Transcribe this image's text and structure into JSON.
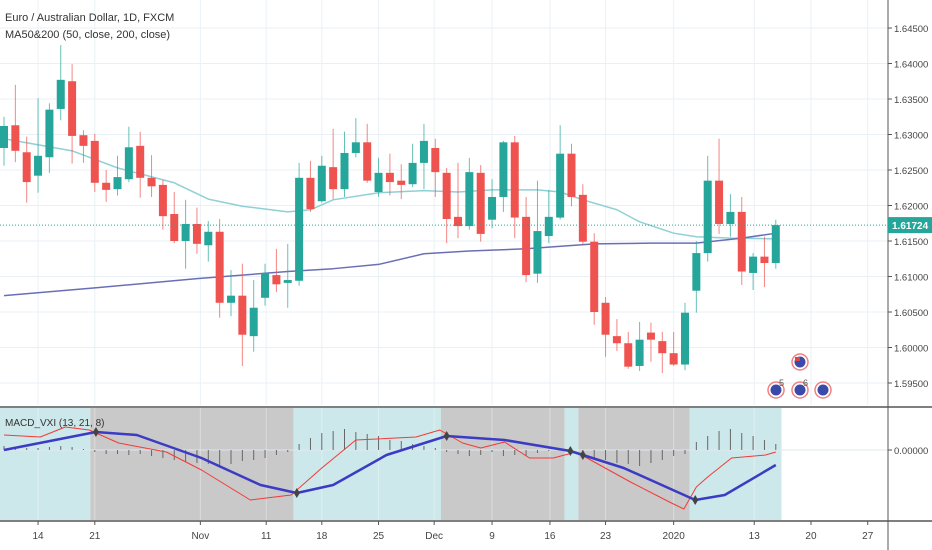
{
  "header": {
    "title": "Euro / Australian Dollar, 1D, FXCM",
    "study": "MA50&200 (50, close, 200, close)"
  },
  "macd": {
    "label": "MACD_VXI (13, 21, 8)"
  },
  "colors": {
    "up": "#26a69a",
    "down": "#ef5350",
    "ma50": "#8fd0d6",
    "ma200": "#6a6fb5",
    "macd_line": "#3b3bc4",
    "signal_line": "#f23a3a",
    "bull_bg": "#cde8ea",
    "bear_bg": "#c9c9c9",
    "grid": "#eaf1f6",
    "last_price": "#26a69a"
  },
  "events": [
    {
      "label": "",
      "icon": "au-flag-icon"
    },
    {
      "label": "5",
      "icon": "eu-flag-icon"
    },
    {
      "label": "6",
      "icon": "eu-flag-icon"
    },
    {
      "label": "",
      "icon": "eu-flag-icon"
    }
  ],
  "chart_data": {
    "type": "candlestick",
    "title": "Euro / Australian Dollar, 1D, FXCM",
    "ylim": [
      1.5925,
      1.6485
    ],
    "y_ticks": [
      "1.64500",
      "1.64000",
      "1.63500",
      "1.63000",
      "1.62500",
      "1.62000",
      "1.61500",
      "1.61000",
      "1.60500",
      "1.60000",
      "1.59500"
    ],
    "last_price": "1.61724",
    "x_ticks": [
      {
        "label": "14",
        "idx": 4
      },
      {
        "label": "21",
        "idx": 9
      },
      {
        "label": "Nov",
        "idx": 18.3
      },
      {
        "label": "11",
        "idx": 24.1
      },
      {
        "label": "18",
        "idx": 29
      },
      {
        "label": "25",
        "idx": 34
      },
      {
        "label": "Dec",
        "idx": 38.9
      },
      {
        "label": "9",
        "idx": 44
      },
      {
        "label": "16",
        "idx": 49.1
      },
      {
        "label": "23",
        "idx": 54
      },
      {
        "label": "2020",
        "idx": 60
      },
      {
        "label": "13",
        "idx": 67.1
      },
      {
        "label": "20",
        "idx": 72.1
      },
      {
        "label": "27",
        "idx": 77.1
      }
    ],
    "candles_ohlc": [
      [
        1.6281,
        1.6325,
        1.6256,
        1.6312
      ],
      [
        1.6313,
        1.637,
        1.6261,
        1.6277
      ],
      [
        1.6275,
        1.6297,
        1.6204,
        1.6233
      ],
      [
        1.6242,
        1.6351,
        1.6218,
        1.627
      ],
      [
        1.6268,
        1.6344,
        1.6246,
        1.6335
      ],
      [
        1.6336,
        1.6426,
        1.632,
        1.6377
      ],
      [
        1.6375,
        1.6399,
        1.6259,
        1.6298
      ],
      [
        1.6299,
        1.6306,
        1.626,
        1.6284
      ],
      [
        1.6291,
        1.6301,
        1.6219,
        1.6232
      ],
      [
        1.6232,
        1.625,
        1.6205,
        1.6222
      ],
      [
        1.6223,
        1.627,
        1.6214,
        1.624
      ],
      [
        1.6237,
        1.6311,
        1.6233,
        1.6282
      ],
      [
        1.6284,
        1.6304,
        1.6211,
        1.6239
      ],
      [
        1.6239,
        1.6271,
        1.6212,
        1.6227
      ],
      [
        1.6229,
        1.6236,
        1.6166,
        1.6185
      ],
      [
        1.6188,
        1.6219,
        1.6147,
        1.615
      ],
      [
        1.615,
        1.6208,
        1.6111,
        1.6174
      ],
      [
        1.6174,
        1.6197,
        1.6132,
        1.6146
      ],
      [
        1.6144,
        1.6178,
        1.6121,
        1.6163
      ],
      [
        1.6163,
        1.6181,
        1.6042,
        1.6063
      ],
      [
        1.6063,
        1.6109,
        1.6044,
        1.6073
      ],
      [
        1.6073,
        1.6118,
        1.5974,
        1.6018
      ],
      [
        1.6016,
        1.6095,
        1.5994,
        1.6056
      ],
      [
        1.607,
        1.6118,
        1.6059,
        1.6105
      ],
      [
        1.6102,
        1.6139,
        1.6078,
        1.6089
      ],
      [
        1.6091,
        1.6146,
        1.6056,
        1.6095
      ],
      [
        1.6094,
        1.626,
        1.6087,
        1.6239
      ],
      [
        1.6239,
        1.6263,
        1.6191,
        1.6195
      ],
      [
        1.6206,
        1.627,
        1.6204,
        1.6256
      ],
      [
        1.6254,
        1.6308,
        1.6209,
        1.6223
      ],
      [
        1.6223,
        1.6304,
        1.6212,
        1.6274
      ],
      [
        1.6274,
        1.6323,
        1.6268,
        1.6289
      ],
      [
        1.6289,
        1.6315,
        1.6232,
        1.6235
      ],
      [
        1.6219,
        1.6267,
        1.6212,
        1.6246
      ],
      [
        1.6246,
        1.6273,
        1.6214,
        1.6233
      ],
      [
        1.6235,
        1.6258,
        1.6209,
        1.6229
      ],
      [
        1.623,
        1.6287,
        1.6226,
        1.626
      ],
      [
        1.626,
        1.6315,
        1.6223,
        1.6291
      ],
      [
        1.6281,
        1.6294,
        1.6212,
        1.6247
      ],
      [
        1.6246,
        1.6253,
        1.6147,
        1.6181
      ],
      [
        1.6184,
        1.626,
        1.6154,
        1.6171
      ],
      [
        1.6171,
        1.6267,
        1.6166,
        1.6247
      ],
      [
        1.6246,
        1.6257,
        1.6149,
        1.616
      ],
      [
        1.618,
        1.6237,
        1.6168,
        1.6212
      ],
      [
        1.6212,
        1.6291,
        1.6191,
        1.6289
      ],
      [
        1.6289,
        1.6298,
        1.6154,
        1.6183
      ],
      [
        1.6184,
        1.6212,
        1.6092,
        1.6102
      ],
      [
        1.6104,
        1.6235,
        1.6091,
        1.6164
      ],
      [
        1.6157,
        1.6222,
        1.6147,
        1.6184
      ],
      [
        1.6183,
        1.6313,
        1.618,
        1.6273
      ],
      [
        1.6273,
        1.6287,
        1.6199,
        1.6212
      ],
      [
        1.6215,
        1.623,
        1.6144,
        1.6149
      ],
      [
        1.6149,
        1.6161,
        1.6032,
        1.605
      ],
      [
        1.6063,
        1.6071,
        1.5987,
        1.6018
      ],
      [
        1.6016,
        1.604,
        1.5995,
        1.6006
      ],
      [
        1.6006,
        1.6022,
        1.597,
        1.5973
      ],
      [
        1.5974,
        1.6036,
        1.5967,
        1.6011
      ],
      [
        1.6021,
        1.6035,
        1.598,
        1.6011
      ],
      [
        1.6009,
        1.6022,
        1.5964,
        1.5992
      ],
      [
        1.5992,
        1.6022,
        1.5974,
        1.5976
      ],
      [
        1.5976,
        1.6063,
        1.5968,
        1.6049
      ],
      [
        1.608,
        1.615,
        1.6049,
        1.6133
      ],
      [
        1.6133,
        1.627,
        1.6121,
        1.6235
      ],
      [
        1.6235,
        1.6294,
        1.616,
        1.6174
      ],
      [
        1.6174,
        1.6216,
        1.6156,
        1.6191
      ],
      [
        1.6191,
        1.6212,
        1.6088,
        1.6107
      ],
      [
        1.6105,
        1.6133,
        1.6081,
        1.6128
      ],
      [
        1.6128,
        1.6156,
        1.6085,
        1.6119
      ],
      [
        1.6119,
        1.618,
        1.6111,
        1.61724
      ]
    ],
    "ma50": [
      [
        1,
        1.6294
      ],
      [
        7,
        1.6277
      ],
      [
        11,
        1.6253
      ],
      [
        16,
        1.6232
      ],
      [
        19,
        1.6209
      ],
      [
        22,
        1.6199
      ],
      [
        26,
        1.6191
      ],
      [
        28,
        1.6194
      ],
      [
        30,
        1.6208
      ],
      [
        34,
        1.6218
      ],
      [
        38,
        1.6221
      ],
      [
        41,
        1.6219
      ],
      [
        44,
        1.6222
      ],
      [
        48,
        1.6222
      ],
      [
        50,
        1.6219
      ],
      [
        52,
        1.6208
      ],
      [
        55,
        1.6194
      ],
      [
        57,
        1.6177
      ],
      [
        60,
        1.6161
      ],
      [
        62,
        1.6156
      ],
      [
        65,
        1.6154
      ],
      [
        69,
        1.6153
      ]
    ],
    "ma200": [
      [
        1,
        1.6073
      ],
      [
        9,
        1.6084
      ],
      [
        18,
        1.6097
      ],
      [
        26,
        1.6107
      ],
      [
        30,
        1.6111
      ],
      [
        34,
        1.6117
      ],
      [
        38,
        1.6132
      ],
      [
        42,
        1.6136
      ],
      [
        47,
        1.6139
      ],
      [
        53,
        1.6146
      ],
      [
        58,
        1.6147
      ],
      [
        62,
        1.6147
      ],
      [
        66,
        1.6154
      ],
      [
        69,
        1.6161
      ]
    ],
    "macd": {
      "zero_label": "0.00000",
      "ylim": [
        -0.007,
        0.0042
      ],
      "macd_line": [
        [
          1,
          0
        ],
        [
          9.1,
          0.0018
        ],
        [
          12.7,
          0.0015
        ],
        [
          18.4,
          -0.0008
        ],
        [
          23.6,
          -0.0035
        ],
        [
          26.8,
          -0.0043
        ],
        [
          30,
          -0.0035
        ],
        [
          34.7,
          -0.0005
        ],
        [
          40,
          0.0014
        ],
        [
          45.1,
          0.001
        ],
        [
          50.9,
          -0.0001
        ],
        [
          55.6,
          -0.0018
        ],
        [
          61.9,
          -0.005
        ],
        [
          64.5,
          -0.0045
        ],
        [
          69,
          -0.0015
        ]
      ],
      "signal_line": [
        [
          1,
          0.0015
        ],
        [
          4.2,
          0.0013
        ],
        [
          6.4,
          0.0023
        ],
        [
          8.5,
          0.002
        ],
        [
          11.1,
          0.0007
        ],
        [
          15.3,
          -0.0002
        ],
        [
          18.4,
          -0.002
        ],
        [
          22.7,
          -0.005
        ],
        [
          26.3,
          -0.0045
        ],
        [
          29,
          -0.0018
        ],
        [
          32,
          0.001
        ],
        [
          37.3,
          0.0013
        ],
        [
          39.4,
          0.002
        ],
        [
          41.4,
          0.0007
        ],
        [
          43,
          0.0002
        ],
        [
          45.1,
          0.0008
        ],
        [
          47.3,
          -0.0008
        ],
        [
          49.4,
          -0.0008
        ],
        [
          51.4,
          -0.0002
        ],
        [
          56.2,
          -0.0032
        ],
        [
          59.8,
          -0.0053
        ],
        [
          60.9,
          -0.0059
        ],
        [
          62,
          -0.0037
        ],
        [
          63,
          -0.0027
        ],
        [
          65.1,
          -0.0008
        ],
        [
          68.1,
          -0.0005
        ],
        [
          69,
          -0.0002
        ]
      ],
      "histogram": [
        0.0004,
        0.0003,
        0.0002,
        0.0002,
        0.0003,
        0.0004,
        0.0003,
        0.0001,
        -0.0002,
        -0.0004,
        -0.0004,
        -0.0005,
        -0.0004,
        -0.0006,
        -0.0008,
        -0.001,
        -0.0012,
        -0.0013,
        -0.0014,
        -0.0016,
        -0.0014,
        -0.0011,
        -0.001,
        -0.0008,
        -0.0005,
        -0.0002,
        0.0006,
        0.0012,
        0.0017,
        0.0019,
        0.0021,
        0.0018,
        0.0016,
        0.0014,
        0.001,
        0.0009,
        0.0006,
        0.0004,
        0.0002,
        -0.0002,
        -0.0004,
        -0.0006,
        -0.0005,
        -0.0002,
        -0.0006,
        -0.0005,
        -0.0006,
        -0.0003,
        -0.0001,
        0.0001,
        -0.0002,
        -0.0005,
        -0.0008,
        -0.001,
        -0.0013,
        -0.0014,
        -0.0016,
        -0.0013,
        -0.001,
        -0.0006,
        -0.0004,
        0.0008,
        0.0014,
        0.0019,
        0.0021,
        0.0017,
        0.0014,
        0.001,
        0.0006
      ],
      "crosses": [
        9.1,
        26.8,
        40,
        50.9,
        52,
        61.9
      ],
      "regions": [
        {
          "from": 0.5,
          "to": 8.6,
          "state": "bull"
        },
        {
          "from": 8.6,
          "to": 26.5,
          "state": "bear"
        },
        {
          "from": 26.5,
          "to": 39.5,
          "state": "bull"
        },
        {
          "from": 39.5,
          "to": 50.4,
          "state": "bear"
        },
        {
          "from": 50.4,
          "to": 51.6,
          "state": "bull"
        },
        {
          "from": 51.6,
          "to": 61.4,
          "state": "bear"
        },
        {
          "from": 61.4,
          "to": 69.5,
          "state": "bull"
        }
      ]
    }
  }
}
